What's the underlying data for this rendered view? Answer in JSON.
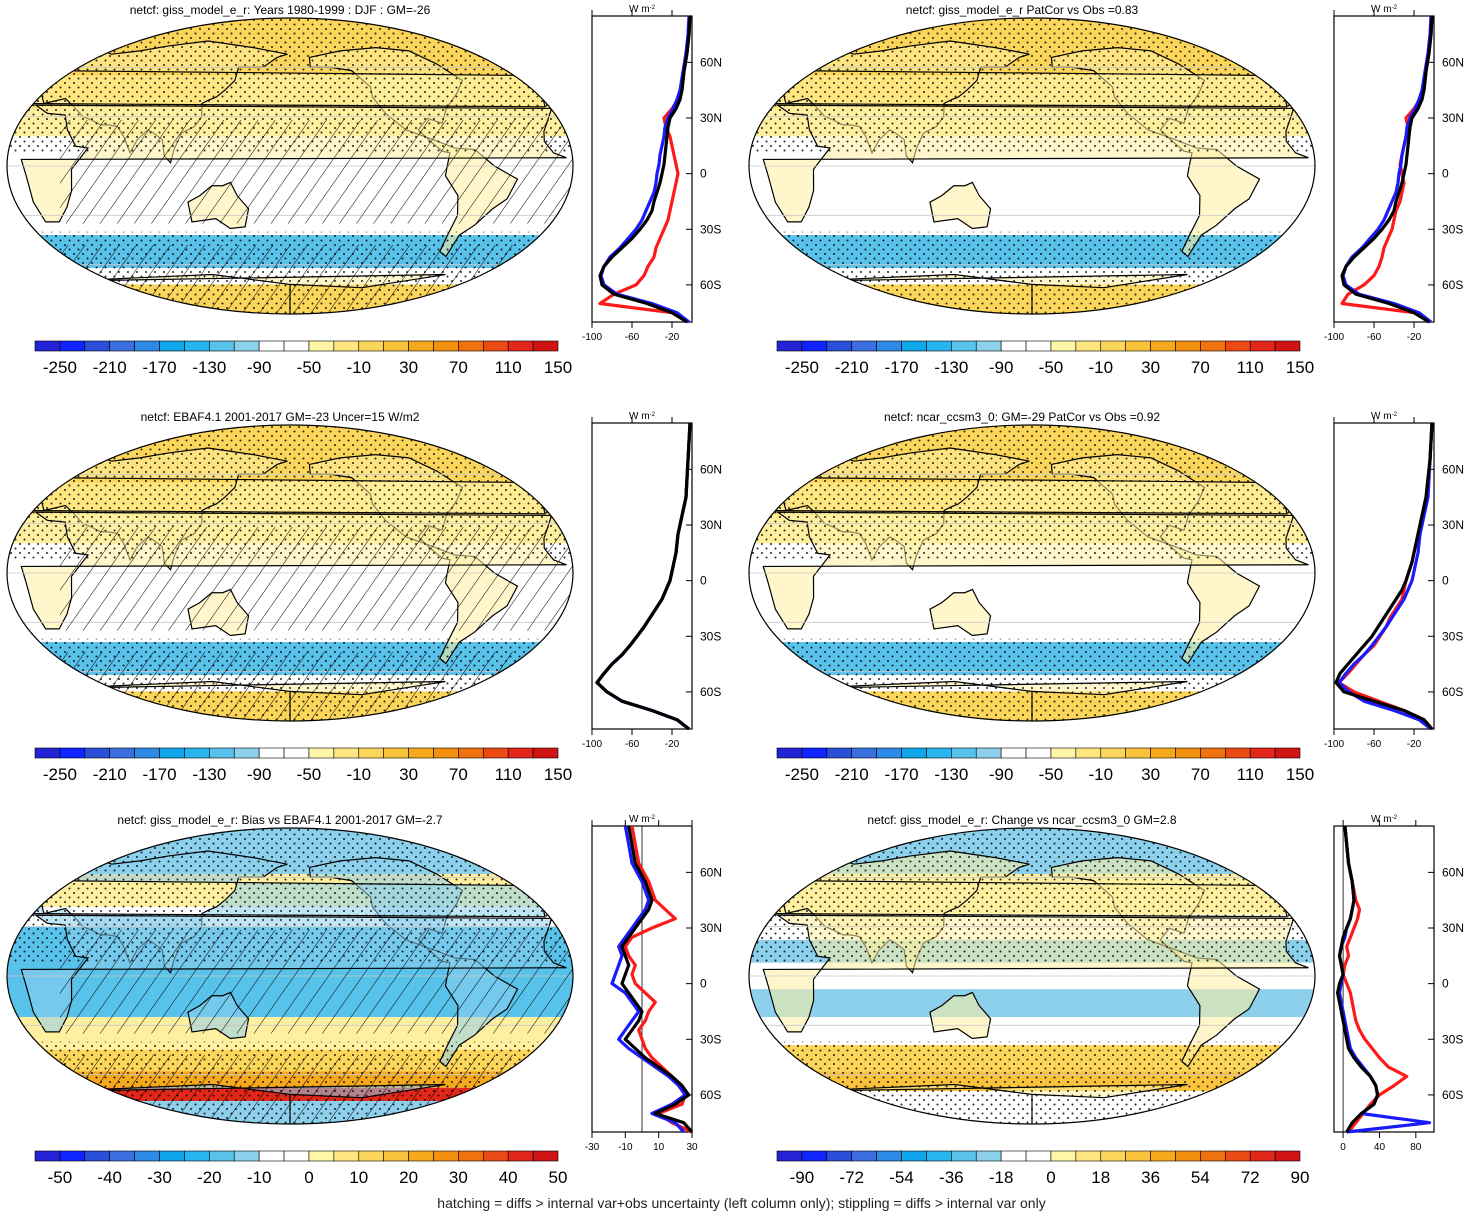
{
  "footer": "hatching = diffs > internal var+obs uncertainty (left column only); stippling = diffs > internal var only",
  "profile_unit": "W m",
  "profile_unit_sup": "-2",
  "lat_labels": [
    "60N",
    "30N",
    "0",
    "30S",
    "60S"
  ],
  "colors": {
    "line_model": "#000000",
    "line_obs": "#1a1aff",
    "line_alt": "#ff1a1a"
  },
  "panels": [
    {
      "id": "p1",
      "title": "netcf: giss_model_e_r: Years 1980-1999 : DJF : GM=-26",
      "hatching": true,
      "map_style": "abs",
      "colorbar_ticks": [
        "-250",
        "-210",
        "-170",
        "-130",
        "-90",
        "-50",
        "-10",
        "30",
        "70",
        "110",
        "150"
      ],
      "colorbar_colors": [
        "#2424d6",
        "#0f24ff",
        "#2a4fd8",
        "#3b6fe0",
        "#2d8ae6",
        "#10a6ec",
        "#28b4ee",
        "#58c2ea",
        "#8cd0ec",
        "#ffffff",
        "#ffffff",
        "#fff6a8",
        "#ffe680",
        "#fcd65a",
        "#f9c33c",
        "#f6a91c",
        "#f4900f",
        "#f0720f",
        "#ec4a14",
        "#e3261a",
        "#d01414"
      ],
      "profile_ticks": [
        "-100",
        "-60",
        "-20"
      ],
      "profile_xlim": [
        -100,
        0
      ]
    },
    {
      "id": "p2",
      "title": "netcf: giss_model_e_r PatCor vs Obs =0.83",
      "hatching": false,
      "map_style": "abs",
      "colorbar_ticks": [
        "-250",
        "-210",
        "-170",
        "-130",
        "-90",
        "-50",
        "-10",
        "30",
        "70",
        "110",
        "150"
      ],
      "colorbar_colors": [
        "#2424d6",
        "#0f24ff",
        "#2a4fd8",
        "#3b6fe0",
        "#2d8ae6",
        "#10a6ec",
        "#28b4ee",
        "#58c2ea",
        "#8cd0ec",
        "#ffffff",
        "#ffffff",
        "#fff6a8",
        "#ffe680",
        "#fcd65a",
        "#f9c33c",
        "#f6a91c",
        "#f4900f",
        "#f0720f",
        "#ec4a14",
        "#e3261a",
        "#d01414"
      ],
      "profile_ticks": [
        "-100",
        "-60",
        "-20"
      ],
      "profile_xlim": [
        -100,
        0
      ]
    },
    {
      "id": "p3",
      "title": "netcf: EBAF4.1 2001-2017 GM=-23 Uncer=15 W/m2",
      "hatching": true,
      "map_style": "abs",
      "colorbar_ticks": [
        "-250",
        "-210",
        "-170",
        "-130",
        "-90",
        "-50",
        "-10",
        "30",
        "70",
        "110",
        "150"
      ],
      "colorbar_colors": [
        "#2424d6",
        "#0f24ff",
        "#2a4fd8",
        "#3b6fe0",
        "#2d8ae6",
        "#10a6ec",
        "#28b4ee",
        "#58c2ea",
        "#8cd0ec",
        "#ffffff",
        "#ffffff",
        "#fff6a8",
        "#ffe680",
        "#fcd65a",
        "#f9c33c",
        "#f6a91c",
        "#f4900f",
        "#f0720f",
        "#ec4a14",
        "#e3261a",
        "#d01414"
      ],
      "profile_ticks": [
        "-100",
        "-60",
        "-20"
      ],
      "profile_xlim": [
        -100,
        0
      ]
    },
    {
      "id": "p4",
      "title": "netcf: ncar_ccsm3_0: GM=-29 PatCor vs Obs =0.92",
      "hatching": false,
      "map_style": "abs",
      "colorbar_ticks": [
        "-250",
        "-210",
        "-170",
        "-130",
        "-90",
        "-50",
        "-10",
        "30",
        "70",
        "110",
        "150"
      ],
      "colorbar_colors": [
        "#2424d6",
        "#0f24ff",
        "#2a4fd8",
        "#3b6fe0",
        "#2d8ae6",
        "#10a6ec",
        "#28b4ee",
        "#58c2ea",
        "#8cd0ec",
        "#ffffff",
        "#ffffff",
        "#fff6a8",
        "#ffe680",
        "#fcd65a",
        "#f9c33c",
        "#f6a91c",
        "#f4900f",
        "#f0720f",
        "#ec4a14",
        "#e3261a",
        "#d01414"
      ],
      "profile_ticks": [
        "-100",
        "-60",
        "-20"
      ],
      "profile_xlim": [
        -100,
        0
      ]
    },
    {
      "id": "p5",
      "title": "netcf: giss_model_e_r: Bias vs EBAF4.1 2001-2017 GM=-2.7",
      "hatching": true,
      "map_style": "bias",
      "colorbar_ticks": [
        "-50",
        "-40",
        "-30",
        "-20",
        "-10",
        "0",
        "10",
        "20",
        "30",
        "40",
        "50"
      ],
      "colorbar_colors": [
        "#2424d6",
        "#0f24ff",
        "#2a4fd8",
        "#3b6fe0",
        "#2d8ae6",
        "#10a6ec",
        "#28b4ee",
        "#58c2ea",
        "#8cd0ec",
        "#ffffff",
        "#ffffff",
        "#fff6a8",
        "#ffe680",
        "#fcd65a",
        "#f9c33c",
        "#f6a91c",
        "#f4900f",
        "#f0720f",
        "#ec4a14",
        "#e3261a",
        "#d01414"
      ],
      "profile_ticks": [
        "-30",
        "-10",
        "10",
        "30"
      ],
      "profile_xlim": [
        -30,
        30
      ],
      "profile_zero": true
    },
    {
      "id": "p6",
      "title": "netcf: giss_model_e_r: Change vs ncar_ccsm3_0 GM=2.8",
      "hatching": false,
      "map_style": "change",
      "colorbar_ticks": [
        "-90",
        "-72",
        "-54",
        "-36",
        "-18",
        "0",
        "18",
        "36",
        "54",
        "72",
        "90"
      ],
      "colorbar_colors": [
        "#2424d6",
        "#0f24ff",
        "#2a4fd8",
        "#3b6fe0",
        "#2d8ae6",
        "#10a6ec",
        "#28b4ee",
        "#58c2ea",
        "#8cd0ec",
        "#ffffff",
        "#ffffff",
        "#fff6a8",
        "#ffe680",
        "#fcd65a",
        "#f9c33c",
        "#f6a91c",
        "#f4900f",
        "#f0720f",
        "#ec4a14",
        "#e3261a",
        "#d01414"
      ],
      "profile_ticks": [
        "0",
        "40",
        "80"
      ],
      "profile_xlim": [
        -10,
        100
      ],
      "profile_zero": true
    }
  ],
  "chart_data": [
    {
      "type": "line",
      "title": "netcf: giss_model_e_r: Years 1980-1999 : DJF : GM=-26",
      "ylabel_ticks": [
        "60N",
        "30N",
        "0",
        "30S",
        "60S"
      ],
      "xlim": [
        -100,
        0
      ],
      "x_ticks": [
        -100,
        -60,
        -20
      ],
      "y": [
        85,
        75,
        65,
        55,
        45,
        40,
        35,
        30,
        25,
        20,
        15,
        10,
        5,
        0,
        -5,
        -10,
        -15,
        -20,
        -25,
        -30,
        -35,
        -40,
        -45,
        -50,
        -55,
        -60,
        -65,
        -70,
        -75,
        -80
      ],
      "series": [
        {
          "values": [
            -2,
            -3,
            -5,
            -8,
            -10,
            -12,
            -16,
            -22,
            -24,
            -25,
            -26,
            -27,
            -28,
            -30,
            -32,
            -35,
            -38,
            -40,
            -45,
            -52,
            -60,
            -70,
            -80,
            -88,
            -92,
            -90,
            -78,
            -45,
            -20,
            -5
          ]
        },
        {
          "values": [
            -3,
            -4,
            -6,
            -9,
            -12,
            -15,
            -19,
            -24,
            -27,
            -28,
            -30,
            -32,
            -33,
            -35,
            -36,
            -38,
            -42,
            -46,
            -50,
            -56,
            -64,
            -72,
            -82,
            -88,
            -91,
            -88,
            -75,
            -40,
            -15,
            -3
          ]
        },
        {
          "values": [
            -2,
            -3,
            -5,
            -8,
            -10,
            -14,
            -20,
            -28,
            -26,
            -22,
            -20,
            -18,
            -16,
            -14,
            -16,
            -18,
            -20,
            -22,
            -24,
            -28,
            -32,
            -36,
            -38,
            -44,
            -48,
            -56,
            -78,
            -92,
            -20,
            -4
          ]
        }
      ]
    },
    {
      "type": "line",
      "title": "netcf: giss_model_e_r PatCor vs Obs =0.83",
      "xlim": [
        -100,
        0
      ],
      "x_ticks": [
        -100,
        -60,
        -20
      ],
      "y": [
        85,
        75,
        65,
        55,
        45,
        40,
        35,
        30,
        25,
        20,
        15,
        10,
        5,
        0,
        -5,
        -10,
        -15,
        -20,
        -25,
        -30,
        -35,
        -40,
        -45,
        -50,
        -55,
        -60,
        -65,
        -70,
        -75,
        -80
      ],
      "series": [
        {
          "values": [
            -2,
            -3,
            -5,
            -8,
            -10,
            -12,
            -16,
            -22,
            -24,
            -25,
            -26,
            -27,
            -28,
            -30,
            -32,
            -35,
            -38,
            -40,
            -45,
            -52,
            -60,
            -70,
            -80,
            -88,
            -92,
            -90,
            -78,
            -45,
            -20,
            -5
          ]
        },
        {
          "values": [
            -3,
            -4,
            -6,
            -9,
            -12,
            -15,
            -19,
            -24,
            -27,
            -28,
            -30,
            -32,
            -33,
            -35,
            -36,
            -38,
            -42,
            -46,
            -50,
            -56,
            -64,
            -72,
            -82,
            -88,
            -91,
            -88,
            -75,
            -40,
            -15,
            -3
          ]
        },
        {
          "values": [
            -2,
            -3,
            -5,
            -8,
            -10,
            -14,
            -20,
            -28,
            -26,
            -28,
            -30,
            -32,
            -34,
            -32,
            -30,
            -32,
            -34,
            -38,
            -40,
            -42,
            -46,
            -50,
            -52,
            -55,
            -60,
            -70,
            -86,
            -92,
            -20,
            -4
          ]
        }
      ]
    },
    {
      "type": "line",
      "title": "netcf: EBAF4.1 2001-2017 GM=-23 Uncer=15 W/m2",
      "xlim": [
        -100,
        0
      ],
      "x_ticks": [
        -100,
        -60,
        -20
      ],
      "y": [
        85,
        75,
        65,
        55,
        45,
        40,
        35,
        30,
        25,
        20,
        15,
        10,
        5,
        0,
        -5,
        -10,
        -15,
        -20,
        -25,
        -30,
        -35,
        -40,
        -45,
        -50,
        -55,
        -60,
        -65,
        -70,
        -75,
        -80
      ],
      "series": [
        {
          "values": [
            -2,
            -3,
            -4,
            -5,
            -6,
            -8,
            -10,
            -12,
            -14,
            -15,
            -16,
            -18,
            -20,
            -22,
            -26,
            -30,
            -36,
            -42,
            -48,
            -55,
            -62,
            -70,
            -80,
            -88,
            -95,
            -85,
            -70,
            -40,
            -15,
            -3
          ]
        },
        {
          "values": [
            -2,
            -3,
            -4,
            -5,
            -6,
            -8,
            -10,
            -12,
            -14,
            -15,
            -16,
            -18,
            -20,
            -22,
            -26,
            -30,
            -36,
            -42,
            -48,
            -55,
            -62,
            -70,
            -80,
            -88,
            -95,
            -85,
            -70,
            -40,
            -15,
            -3
          ]
        },
        {
          "values": [
            -2,
            -3,
            -4,
            -5,
            -6,
            -8,
            -10,
            -12,
            -14,
            -15,
            -16,
            -18,
            -20,
            -22,
            -26,
            -30,
            -36,
            -42,
            -48,
            -55,
            -62,
            -70,
            -80,
            -88,
            -95,
            -85,
            -70,
            -40,
            -15,
            -3
          ]
        }
      ]
    },
    {
      "type": "line",
      "title": "netcf: ncar_ccsm3_0: GM=-29 PatCor vs Obs =0.92",
      "xlim": [
        -100,
        0
      ],
      "x_ticks": [
        -100,
        -60,
        -20
      ],
      "y": [
        85,
        75,
        65,
        55,
        45,
        40,
        35,
        30,
        25,
        20,
        15,
        10,
        5,
        0,
        -5,
        -10,
        -15,
        -20,
        -25,
        -30,
        -35,
        -40,
        -45,
        -50,
        -55,
        -60,
        -65,
        -70,
        -75,
        -80
      ],
      "series": [
        {
          "values": [
            -2,
            -3,
            -4,
            -6,
            -8,
            -10,
            -12,
            -14,
            -16,
            -18,
            -20,
            -22,
            -25,
            -28,
            -32,
            -38,
            -44,
            -50,
            -56,
            -62,
            -70,
            -78,
            -86,
            -94,
            -98,
            -90,
            -60,
            -30,
            -10,
            -2
          ]
        },
        {
          "values": [
            -2,
            -3,
            -4,
            -5,
            -6,
            -8,
            -10,
            -12,
            -14,
            -15,
            -16,
            -18,
            -20,
            -22,
            -26,
            -30,
            -36,
            -42,
            -48,
            -55,
            -62,
            -70,
            -80,
            -88,
            -95,
            -85,
            -70,
            -40,
            -15,
            -3
          ]
        },
        {
          "values": [
            -2,
            -3,
            -4,
            -6,
            -8,
            -10,
            -12,
            -14,
            -16,
            -18,
            -20,
            -22,
            -25,
            -28,
            -30,
            -32,
            -38,
            -44,
            -48,
            -54,
            -60,
            -70,
            -78,
            -86,
            -95,
            -80,
            -55,
            -30,
            -10,
            -2
          ]
        }
      ]
    },
    {
      "type": "line",
      "title": "netcf: giss_model_e_r: Bias vs EBAF4.1 2001-2017 GM=-2.7",
      "xlim": [
        -30,
        30
      ],
      "x_ticks": [
        -30,
        -10,
        10,
        30
      ],
      "y": [
        85,
        75,
        65,
        55,
        45,
        40,
        35,
        30,
        25,
        20,
        15,
        10,
        5,
        0,
        -5,
        -10,
        -15,
        -20,
        -25,
        -30,
        -35,
        -40,
        -45,
        -50,
        -55,
        -60,
        -65,
        -70,
        -75,
        -80
      ],
      "series": [
        {
          "values": [
            -8,
            -6,
            -4,
            2,
            6,
            4,
            0,
            -4,
            -8,
            -12,
            -10,
            -8,
            -10,
            -12,
            -8,
            -4,
            0,
            -2,
            -6,
            -10,
            -4,
            2,
            10,
            18,
            24,
            28,
            20,
            8,
            25,
            30
          ]
        },
        {
          "values": [
            -10,
            -8,
            -6,
            0,
            4,
            2,
            -2,
            -6,
            -10,
            -14,
            -12,
            -14,
            -16,
            -18,
            -10,
            -6,
            -2,
            -6,
            -10,
            -14,
            -8,
            0,
            8,
            16,
            22,
            26,
            18,
            6,
            20,
            25
          ]
        },
        {
          "values": [
            -6,
            -4,
            -2,
            4,
            8,
            14,
            20,
            6,
            -6,
            -10,
            -8,
            -4,
            -6,
            -4,
            2,
            8,
            4,
            2,
            -2,
            0,
            2,
            6,
            12,
            18,
            22,
            26,
            24,
            10,
            18,
            30
          ]
        }
      ]
    },
    {
      "type": "line",
      "title": "netcf: giss_model_e_r: Change vs ncar_ccsm3_0 GM=2.8",
      "xlim": [
        -10,
        100
      ],
      "x_ticks": [
        0,
        40,
        80
      ],
      "y": [
        85,
        75,
        65,
        55,
        45,
        40,
        35,
        30,
        25,
        20,
        15,
        10,
        5,
        0,
        -5,
        -10,
        -15,
        -20,
        -25,
        -30,
        -35,
        -40,
        -45,
        -50,
        -55,
        -60,
        -65,
        -70,
        -75,
        -80
      ],
      "series": [
        {
          "values": [
            2,
            4,
            6,
            10,
            12,
            10,
            8,
            4,
            0,
            -2,
            -4,
            -2,
            0,
            -4,
            -6,
            -4,
            -2,
            0,
            2,
            4,
            6,
            12,
            20,
            30,
            36,
            38,
            34,
            20,
            10,
            4
          ]
        },
        {
          "values": [
            2,
            4,
            6,
            10,
            12,
            10,
            8,
            4,
            2,
            -2,
            -4,
            -2,
            0,
            -2,
            -4,
            -2,
            0,
            2,
            4,
            6,
            8,
            14,
            22,
            30,
            36,
            38,
            34,
            20,
            95,
            4
          ]
        },
        {
          "values": [
            2,
            4,
            6,
            10,
            14,
            18,
            16,
            12,
            8,
            4,
            6,
            2,
            0,
            4,
            8,
            10,
            12,
            14,
            18,
            24,
            32,
            40,
            50,
            70,
            56,
            40,
            30,
            22,
            14,
            6
          ]
        }
      ]
    }
  ]
}
